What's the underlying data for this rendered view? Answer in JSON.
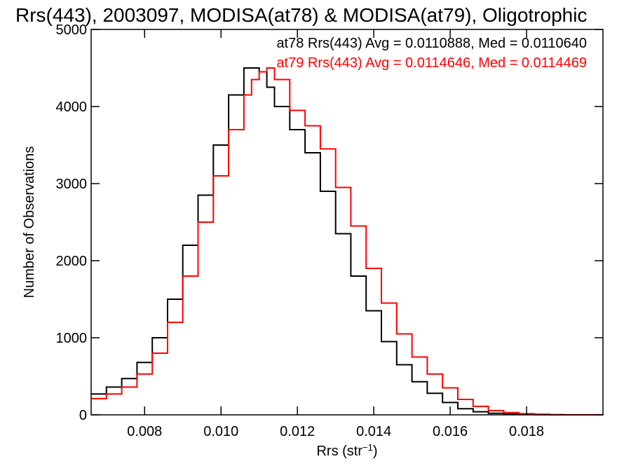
{
  "chart_data": {
    "type": "line",
    "step": true,
    "title": "Rrs(443), 2003097, MODISA(at78) & MODISA(at79), Oligotrophic",
    "xlabel": "Rrs (str",
    "xlabel_sup": "−1",
    "xlabel_end": ")",
    "ylabel": "Number of Observations",
    "xlim": [
      0.0066,
      0.02
    ],
    "ylim": [
      0,
      5000
    ],
    "x_ticks": [
      0.008,
      0.01,
      0.012,
      0.014,
      0.016,
      0.018
    ],
    "x_tick_labels": [
      "0.008",
      "0.010",
      "0.012",
      "0.014",
      "0.016",
      "0.018"
    ],
    "y_ticks": [
      0,
      1000,
      2000,
      3000,
      4000,
      5000
    ],
    "y_tick_labels": [
      "0",
      "1000",
      "2000",
      "3000",
      "4000",
      "5000"
    ],
    "legend_position": "top-right",
    "grid": false,
    "x": [
      0.0066,
      0.007,
      0.0074,
      0.0078,
      0.0082,
      0.0086,
      0.009,
      0.0094,
      0.0098,
      0.0102,
      0.0106,
      0.0108,
      0.011,
      0.0112,
      0.0114,
      0.0118,
      0.0122,
      0.0126,
      0.013,
      0.0134,
      0.0138,
      0.0142,
      0.0146,
      0.015,
      0.0154,
      0.0158,
      0.0162,
      0.0166,
      0.017,
      0.0174,
      0.0178,
      0.0182,
      0.0186,
      0.019,
      0.02
    ],
    "series": [
      {
        "name": "at78",
        "color": "#000000",
        "label": "at78 Rrs(443) Avg = 0.0110888, Med = 0.0110640",
        "values": [
          270,
          360,
          470,
          680,
          1000,
          1500,
          2200,
          2850,
          3500,
          4150,
          4500,
          4500,
          4450,
          4250,
          4000,
          3700,
          3400,
          2900,
          2350,
          1800,
          1350,
          950,
          650,
          430,
          280,
          160,
          80,
          40,
          20,
          10,
          5,
          2,
          1,
          0,
          0
        ]
      },
      {
        "name": "at79",
        "color": "#ff0000",
        "label": "at79 Rrs(443) Avg = 0.0114646, Med = 0.0114469",
        "values": [
          210,
          270,
          360,
          530,
          800,
          1200,
          1800,
          2500,
          3100,
          3700,
          4150,
          4350,
          4450,
          4500,
          4350,
          3950,
          3750,
          3450,
          2950,
          2450,
          1900,
          1450,
          1050,
          750,
          530,
          350,
          200,
          110,
          55,
          30,
          15,
          8,
          3,
          1,
          0
        ]
      }
    ]
  }
}
